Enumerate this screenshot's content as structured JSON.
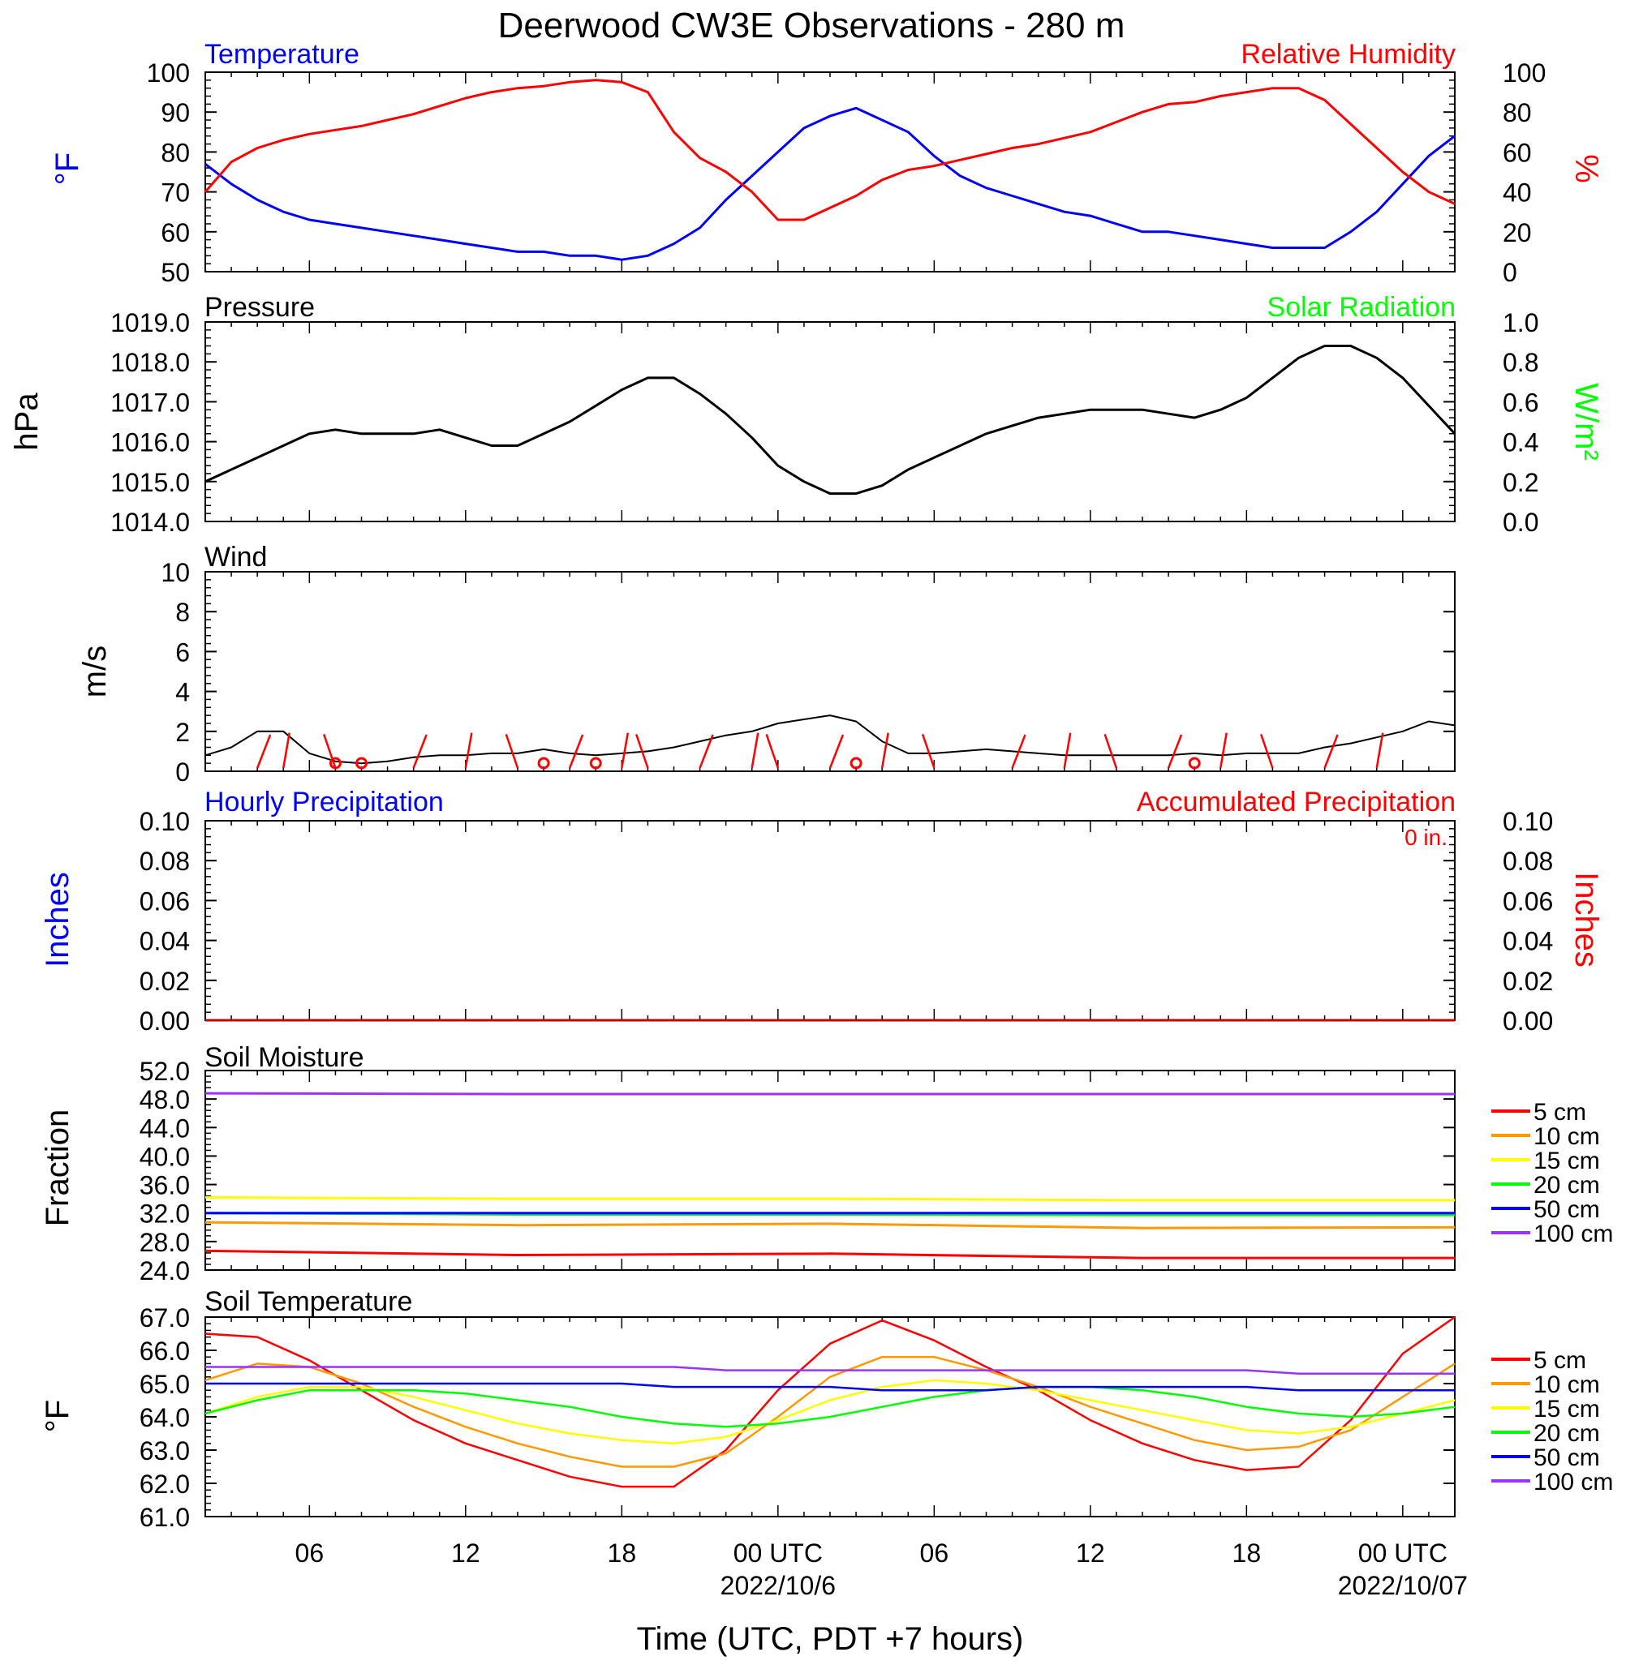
{
  "title": "Deerwood CW3E Observations - 280 m",
  "xlabel": "Time (UTC, PDT +7 hours)",
  "x_tick_labels": [
    "06",
    "12",
    "18",
    "00 UTC",
    "06",
    "12",
    "18",
    "00 UTC"
  ],
  "x_date_labels": [
    "2022/10/6",
    "2022/10/07"
  ],
  "panels": {
    "temperature": {
      "left_title": "Temperature",
      "right_title": "Relative Humidity",
      "left_unit": "°F",
      "right_unit": "%",
      "left_ticks": [
        "100",
        "90",
        "80",
        "70",
        "60",
        "50"
      ],
      "right_ticks": [
        "100",
        "80",
        "60",
        "40",
        "20",
        "0"
      ]
    },
    "pressure": {
      "left_title": "Pressure",
      "right_title": "Solar Radiation",
      "left_unit": "hPa",
      "right_unit": "W/m²",
      "left_ticks": [
        "1019.0",
        "1018.0",
        "1017.0",
        "1016.0",
        "1015.0",
        "1014.0"
      ],
      "right_ticks": [
        "1.0",
        "0.8",
        "0.6",
        "0.4",
        "0.2",
        "0.0"
      ]
    },
    "wind": {
      "left_title": "Wind",
      "left_unit": "m/s",
      "left_ticks": [
        "10",
        "8",
        "6",
        "4",
        "2",
        "0"
      ]
    },
    "precip": {
      "left_title": "Hourly Precipitation",
      "right_title": "Accumulated Precipitation",
      "total_label": "0 in.",
      "left_unit": "Inches",
      "right_unit": "Inches",
      "left_ticks": [
        "0.10",
        "0.08",
        "0.06",
        "0.04",
        "0.02",
        "0.00"
      ],
      "right_ticks": [
        "0.10",
        "0.08",
        "0.06",
        "0.04",
        "0.02",
        "0.00"
      ]
    },
    "soil_moisture": {
      "left_title": "Soil Moisture",
      "left_unit": "Fraction",
      "left_ticks": [
        "52.0",
        "48.0",
        "44.0",
        "40.0",
        "36.0",
        "32.0",
        "28.0",
        "24.0"
      ],
      "legend": [
        "5 cm",
        "10 cm",
        "15 cm",
        "20 cm",
        "50 cm",
        "100 cm"
      ]
    },
    "soil_temperature": {
      "left_title": "Soil Temperature",
      "left_unit": "°F",
      "left_ticks": [
        "67.0",
        "66.0",
        "65.0",
        "64.0",
        "63.0",
        "62.0",
        "61.0"
      ],
      "legend": [
        "5 cm",
        "10 cm",
        "15 cm",
        "20 cm",
        "50 cm",
        "100 cm"
      ]
    }
  },
  "colors": {
    "temperature": "#0000ff",
    "humidity": "#ff0000",
    "pressure": "#000000",
    "solar": "#00ff00",
    "wind": "#000000",
    "barbs": "#ff0000",
    "depths": [
      "#ff0000",
      "#ff9900",
      "#ffff00",
      "#00ff00",
      "#0000ff",
      "#9933ff"
    ]
  },
  "chart_data": [
    {
      "type": "line",
      "name": "temperature",
      "x_unit": "hours since 2022/10/05 02 UTC",
      "x": [
        0,
        1,
        2,
        3,
        4,
        5,
        6,
        7,
        8,
        9,
        10,
        11,
        12,
        13,
        14,
        15,
        16,
        17,
        18,
        19,
        20,
        21,
        22,
        23,
        24,
        25,
        26,
        27,
        28,
        29,
        30,
        31,
        32,
        33,
        34,
        35,
        36,
        37,
        38,
        39,
        40,
        41,
        42,
        43,
        44,
        45,
        46,
        47,
        48
      ],
      "series": [
        {
          "name": "Temperature",
          "axis": "left",
          "values": [
            77,
            72,
            68,
            65,
            63,
            62,
            61,
            60,
            59,
            58,
            57,
            56,
            55,
            55,
            54,
            54,
            53,
            54,
            57,
            61,
            68,
            74,
            80,
            86,
            89,
            91,
            88,
            85,
            79,
            74,
            71,
            69,
            67,
            65,
            64,
            62,
            60,
            60,
            59,
            58,
            57,
            56,
            56,
            56,
            60,
            65,
            72,
            79,
            84
          ]
        },
        {
          "name": "Relative Humidity",
          "axis": "right",
          "values": [
            40,
            55,
            62,
            66,
            69,
            71,
            73,
            76,
            79,
            83,
            87,
            90,
            92,
            93,
            95,
            96,
            95,
            90,
            70,
            57,
            50,
            40,
            26,
            26,
            32,
            38,
            46,
            51,
            53,
            56,
            59,
            62,
            64,
            67,
            70,
            75,
            80,
            84,
            85,
            88,
            90,
            92,
            92,
            86,
            74,
            62,
            50,
            40,
            34
          ]
        }
      ],
      "ylim_left": [
        50,
        100
      ],
      "ylim_right": [
        0,
        100
      ]
    },
    {
      "type": "line",
      "name": "pressure",
      "x_unit": "hours since 2022/10/05 02 UTC",
      "x": [
        0,
        1,
        2,
        3,
        4,
        5,
        6,
        7,
        8,
        9,
        10,
        11,
        12,
        13,
        14,
        15,
        16,
        17,
        18,
        19,
        20,
        21,
        22,
        23,
        24,
        25,
        26,
        27,
        28,
        29,
        30,
        31,
        32,
        33,
        34,
        35,
        36,
        37,
        38,
        39,
        40,
        41,
        42,
        43,
        44,
        45,
        46,
        47,
        48
      ],
      "series": [
        {
          "name": "Pressure",
          "axis": "left",
          "values": [
            1015.0,
            1015.3,
            1015.6,
            1015.9,
            1016.2,
            1016.3,
            1016.2,
            1016.2,
            1016.2,
            1016.3,
            1016.1,
            1015.9,
            1015.9,
            1016.2,
            1016.5,
            1016.9,
            1017.3,
            1017.6,
            1017.6,
            1017.2,
            1016.7,
            1016.1,
            1015.4,
            1015.0,
            1014.7,
            1014.7,
            1014.9,
            1015.3,
            1015.6,
            1015.9,
            1016.2,
            1016.4,
            1016.6,
            1016.7,
            1016.8,
            1016.8,
            1016.8,
            1016.7,
            1016.6,
            1016.8,
            1017.1,
            1017.6,
            1018.1,
            1018.4,
            1018.4,
            1018.1,
            1017.6,
            1016.9,
            1016.2
          ]
        },
        {
          "name": "Solar Radiation",
          "axis": "right",
          "values": [
            0,
            0,
            0,
            0,
            0,
            0,
            0,
            0,
            0,
            0,
            0,
            0,
            0,
            0,
            0,
            0,
            0,
            0,
            0,
            0,
            0,
            0,
            0,
            0,
            0,
            0,
            0,
            0,
            0,
            0,
            0,
            0,
            0,
            0,
            0,
            0,
            0,
            0,
            0,
            0,
            0,
            0,
            0,
            0,
            0,
            0,
            0,
            0,
            0
          ]
        }
      ],
      "ylim_left": [
        1014,
        1019
      ],
      "ylim_right": [
        0,
        1
      ]
    },
    {
      "type": "line",
      "name": "wind",
      "x_unit": "hours since 2022/10/05 02 UTC",
      "x": [
        0,
        1,
        2,
        3,
        4,
        5,
        6,
        7,
        8,
        9,
        10,
        11,
        12,
        13,
        14,
        15,
        16,
        17,
        18,
        19,
        20,
        21,
        22,
        23,
        24,
        25,
        26,
        27,
        28,
        29,
        30,
        31,
        32,
        33,
        34,
        35,
        36,
        37,
        38,
        39,
        40,
        41,
        42,
        43,
        44,
        45,
        46,
        47,
        48
      ],
      "series": [
        {
          "name": "Wind speed",
          "values": [
            0.8,
            1.2,
            2.0,
            2.0,
            0.9,
            0.5,
            0.4,
            0.5,
            0.7,
            0.8,
            0.8,
            0.9,
            0.9,
            1.1,
            0.9,
            0.8,
            0.9,
            1.0,
            1.2,
            1.5,
            1.8,
            2.0,
            2.4,
            2.6,
            2.8,
            2.5,
            1.5,
            0.9,
            0.9,
            1.0,
            1.1,
            1.0,
            0.9,
            0.8,
            0.8,
            0.8,
            0.8,
            0.8,
            0.9,
            0.8,
            0.9,
            0.9,
            0.9,
            1.2,
            1.4,
            1.7,
            2.0,
            2.5,
            2.3
          ]
        }
      ],
      "ylim": [
        0,
        10
      ]
    },
    {
      "type": "line",
      "name": "precipitation",
      "x_unit": "hours since 2022/10/05 02 UTC",
      "x": [
        0,
        48
      ],
      "series": [
        {
          "name": "Hourly Precipitation",
          "axis": "left",
          "values": [
            0,
            0
          ]
        },
        {
          "name": "Accumulated Precipitation",
          "axis": "right",
          "values": [
            0,
            0
          ]
        }
      ],
      "ylim_left": [
        0,
        0.1
      ],
      "ylim_right": [
        0,
        0.1
      ]
    },
    {
      "type": "line",
      "name": "soil_moisture",
      "x_unit": "hours since 2022/10/05 02 UTC",
      "x": [
        0,
        12,
        24,
        36,
        48
      ],
      "series": [
        {
          "name": "5 cm",
          "values": [
            26.7,
            26.1,
            26.3,
            25.7,
            25.7
          ]
        },
        {
          "name": "10 cm",
          "values": [
            30.7,
            30.3,
            30.5,
            29.9,
            30.0
          ]
        },
        {
          "name": "15 cm",
          "values": [
            34.2,
            34.0,
            34.0,
            33.8,
            33.8
          ]
        },
        {
          "name": "20 cm",
          "values": [
            32.0,
            31.8,
            31.8,
            31.7,
            31.7
          ]
        },
        {
          "name": "50 cm",
          "values": [
            32.0,
            32.0,
            32.0,
            32.0,
            32.0
          ]
        },
        {
          "name": "100 cm",
          "values": [
            48.8,
            48.7,
            48.7,
            48.7,
            48.7
          ]
        }
      ],
      "ylim": [
        24,
        52
      ]
    },
    {
      "type": "line",
      "name": "soil_temperature",
      "x_unit": "hours since 2022/10/05 02 UTC",
      "x": [
        0,
        2,
        4,
        6,
        8,
        10,
        12,
        14,
        16,
        18,
        20,
        22,
        24,
        26,
        28,
        30,
        32,
        34,
        36,
        38,
        40,
        42,
        44,
        46,
        48
      ],
      "series": [
        {
          "name": "5 cm",
          "values": [
            66.5,
            66.4,
            65.7,
            64.8,
            63.9,
            63.2,
            62.7,
            62.2,
            61.9,
            61.9,
            63.0,
            64.8,
            66.2,
            66.9,
            66.3,
            65.5,
            64.8,
            63.9,
            63.2,
            62.7,
            62.4,
            62.5,
            63.9,
            65.9,
            67.0
          ]
        },
        {
          "name": "10 cm",
          "values": [
            65.1,
            65.6,
            65.5,
            65.0,
            64.3,
            63.7,
            63.2,
            62.8,
            62.5,
            62.5,
            62.9,
            64.0,
            65.2,
            65.8,
            65.8,
            65.4,
            64.9,
            64.3,
            63.8,
            63.3,
            63.0,
            63.1,
            63.6,
            64.6,
            65.6
          ]
        },
        {
          "name": "15 cm",
          "values": [
            64.1,
            64.6,
            64.9,
            64.9,
            64.6,
            64.2,
            63.8,
            63.5,
            63.3,
            63.2,
            63.4,
            63.9,
            64.5,
            64.9,
            65.1,
            65.0,
            64.8,
            64.5,
            64.2,
            63.9,
            63.6,
            63.5,
            63.7,
            64.1,
            64.5
          ]
        },
        {
          "name": "20 cm",
          "values": [
            64.1,
            64.5,
            64.8,
            64.8,
            64.8,
            64.7,
            64.5,
            64.3,
            64.0,
            63.8,
            63.7,
            63.8,
            64.0,
            64.3,
            64.6,
            64.8,
            64.9,
            64.9,
            64.8,
            64.6,
            64.3,
            64.1,
            64.0,
            64.1,
            64.3
          ]
        },
        {
          "name": "50 cm",
          "values": [
            65.0,
            65.0,
            65.0,
            65.0,
            65.0,
            65.0,
            65.0,
            65.0,
            65.0,
            64.9,
            64.9,
            64.9,
            64.9,
            64.8,
            64.8,
            64.8,
            64.9,
            64.9,
            64.9,
            64.9,
            64.9,
            64.8,
            64.8,
            64.8,
            64.8
          ]
        },
        {
          "name": "100 cm",
          "values": [
            65.5,
            65.5,
            65.5,
            65.5,
            65.5,
            65.5,
            65.5,
            65.5,
            65.5,
            65.5,
            65.4,
            65.4,
            65.4,
            65.4,
            65.4,
            65.4,
            65.4,
            65.4,
            65.4,
            65.4,
            65.4,
            65.3,
            65.3,
            65.3,
            65.3
          ]
        }
      ],
      "ylim": [
        61,
        67
      ]
    }
  ]
}
